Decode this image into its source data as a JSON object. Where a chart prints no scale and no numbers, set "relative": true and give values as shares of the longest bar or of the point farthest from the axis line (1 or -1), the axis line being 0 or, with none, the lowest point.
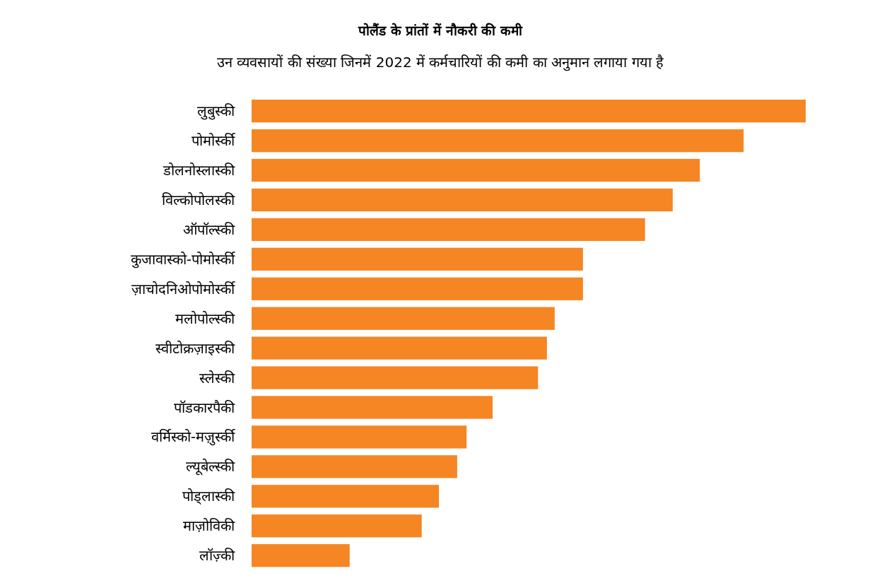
{
  "chart_data": {
    "type": "bar",
    "orientation": "horizontal",
    "relative": true,
    "title": "पोलैंड के प्रांतों में नौकरी की कमी",
    "subtitle": "उन व्यवसायों की संख्या जिनमें 2022 में कर्मचारियों की कमी का  अनुमान लगाया गया है",
    "color": "#f58623",
    "categories": [
      "लुबुस्की",
      "पोमोर्स्की",
      "डोलनोस्लास्की",
      "विल्कोपोलस्की",
      "ऑपॉल्स्की",
      "कुजावास्को-पोमोर्स्की",
      "ज़ाचोदनिओपोमोर्स्की",
      "मलोपोल्स्की",
      "स्वीटोक्रज़ाइस्की",
      "स्लेस्की",
      "पॉडकारपैकी",
      "वर्मिस्को-मज़ुर्स्की",
      "ल्यूबेल्स्की",
      "पोड्लास्की",
      "माज़ोविकी",
      "लॉज़्की"
    ],
    "values": [
      1,
      0.888,
      0.809,
      0.76,
      0.71,
      0.598,
      0.598,
      0.547,
      0.533,
      0.517,
      0.435,
      0.388,
      0.371,
      0.338,
      0.307,
      0.177
    ]
  }
}
